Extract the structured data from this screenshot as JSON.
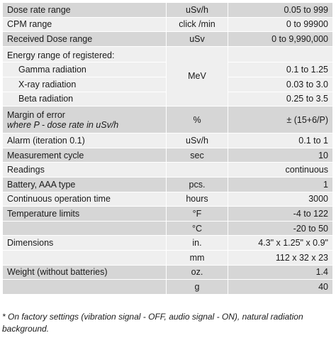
{
  "table": {
    "rows": [
      {
        "param": "Dose rate range",
        "unit": "uSv/h",
        "range": "0.05 to 999"
      },
      {
        "param": "CPM range",
        "unit": "click /min",
        "range": "0 to 99900"
      },
      {
        "param": "Received Dose range",
        "unit": "uSv",
        "range": "0 to 9,990,000"
      }
    ],
    "energy": {
      "heading": "Energy range of registered:",
      "unit": "MeV",
      "items": [
        {
          "param": "Gamma radiation",
          "range": "0.1 to 1.25"
        },
        {
          "param": "X-ray radiation",
          "range": "0.03 to 3.0"
        },
        {
          "param": "Beta radiation",
          "range": "0.25 to 3.5"
        }
      ]
    },
    "margin": {
      "param": "Margin of error",
      "note": "where P - dose rate in uSv/h",
      "unit": "%",
      "range": "± (15+6/P)"
    },
    "alarm": {
      "param": "Alarm (iteration 0.1)",
      "unit": "uSv/h",
      "range": "0.1 to 1"
    },
    "cycle": {
      "param": "Measurement cycle",
      "unit": "sec",
      "range": "10"
    },
    "readings": {
      "param": "Readings",
      "unit": "",
      "range": "continuous"
    },
    "battery": {
      "param": "Battery, AAA type",
      "unit": "pcs.",
      "range": "1"
    },
    "operation": {
      "param": "Continuous operation time",
      "unit": "hours",
      "range": "3000"
    },
    "temperature": {
      "param": "Temperature limits",
      "rows": [
        {
          "unit": "°F",
          "range": "-4 to 122"
        },
        {
          "unit": "°C",
          "range": "-20 to 50"
        }
      ]
    },
    "dimensions": {
      "param": "Dimensions",
      "rows": [
        {
          "unit": "in.",
          "range": "4.3\" x 1.25\" x 0.9\""
        },
        {
          "unit": "mm",
          "range": "112 x 32 x 23"
        }
      ]
    },
    "weight": {
      "param": "Weight (without batteries)",
      "rows": [
        {
          "unit": "oz.",
          "range": "1.4"
        },
        {
          "unit": "g",
          "range": "40"
        }
      ]
    }
  },
  "footnote": "* On factory settings (vibration signal - OFF, audio signal - ON), natural radiation background."
}
